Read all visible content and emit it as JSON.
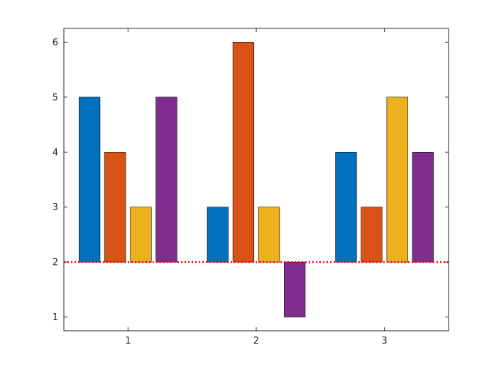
{
  "chart_data": {
    "type": "bar",
    "categories": [
      "1",
      "2",
      "3"
    ],
    "series": [
      {
        "values": [
          5,
          3,
          4
        ],
        "color": "#0072BD"
      },
      {
        "values": [
          4,
          6,
          3
        ],
        "color": "#D95319"
      },
      {
        "values": [
          3,
          3,
          5
        ],
        "color": "#EDB120"
      },
      {
        "values": [
          5,
          1,
          4
        ],
        "color": "#7E2F8E"
      }
    ],
    "base_value": 2,
    "ylim": [
      0.75,
      6.25
    ],
    "yticks": [
      1,
      2,
      3,
      4,
      5,
      6
    ],
    "ytick_labels": [
      "1",
      "2",
      "3",
      "4",
      "5",
      "6"
    ],
    "xlim": [
      0.5,
      3.5
    ],
    "baseline": {
      "value": 2,
      "color": "#FF0000",
      "style": "dotted"
    },
    "title": "",
    "xlabel": "",
    "ylabel": "",
    "grid": false,
    "legend": false
  }
}
